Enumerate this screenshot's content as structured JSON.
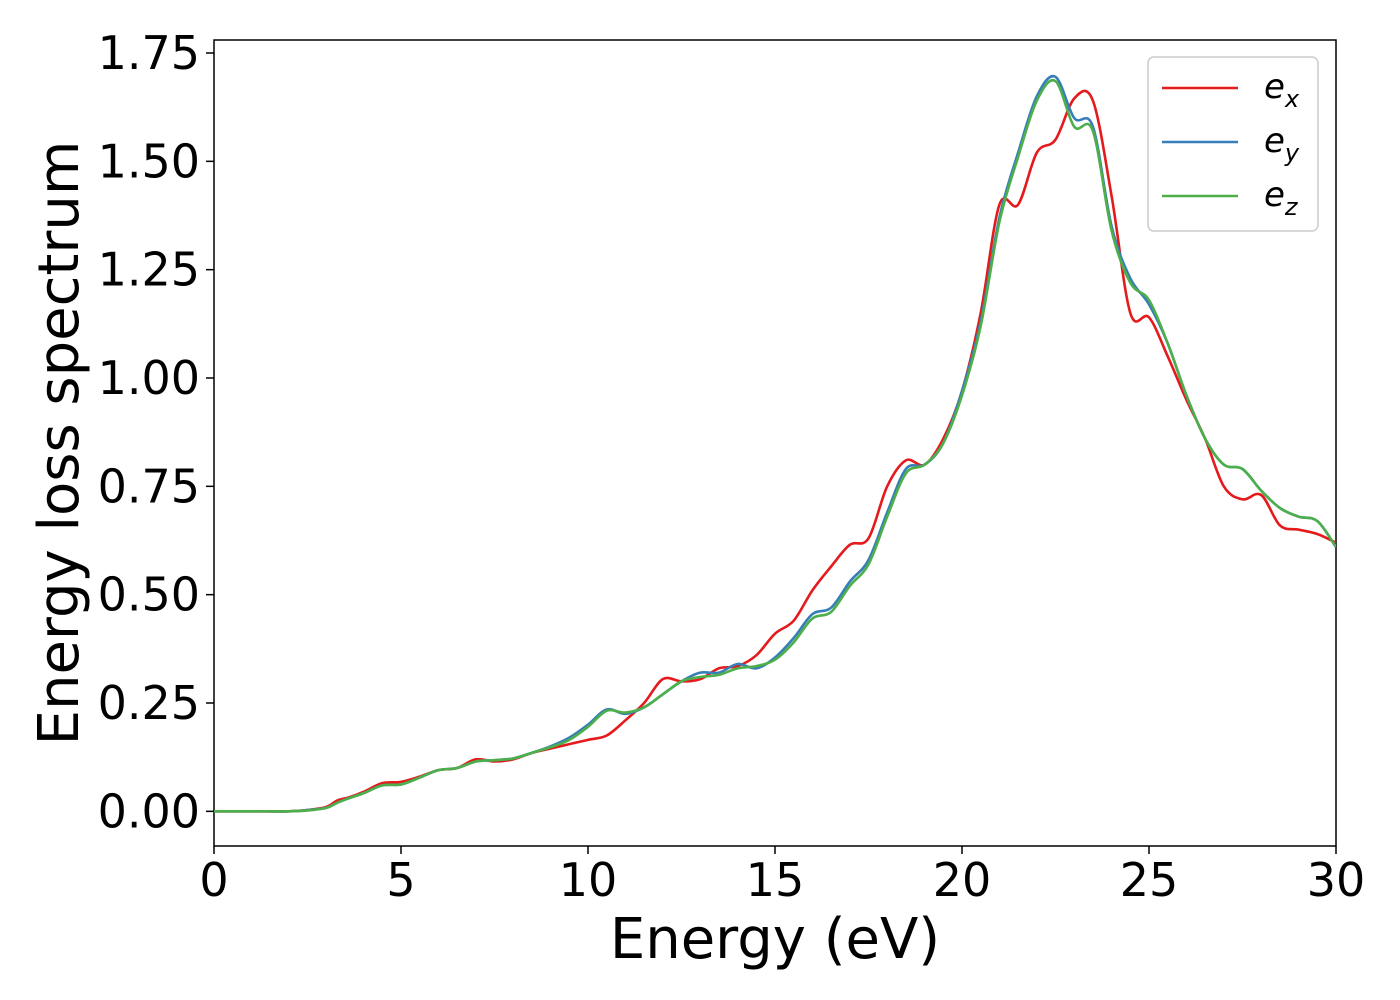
{
  "chart_data": {
    "type": "line",
    "title": "",
    "xlabel": "Energy (eV)",
    "ylabel": "Energy loss spectrum",
    "xlim": [
      0,
      30
    ],
    "ylim": [
      -0.08,
      1.78
    ],
    "xticks": [
      0,
      5,
      10,
      15,
      20,
      25,
      30
    ],
    "xtick_labels": [
      "0",
      "5",
      "10",
      "15",
      "20",
      "25",
      "30"
    ],
    "yticks": [
      0,
      0.25,
      0.5,
      0.75,
      1.0,
      1.25,
      1.5,
      1.75
    ],
    "ytick_labels": [
      "0.00",
      "0.25",
      "0.50",
      "0.75",
      "1.00",
      "1.25",
      "1.50",
      "1.75"
    ],
    "grid": false,
    "legend_position": "top-right",
    "x": [
      0,
      1,
      2,
      2.5,
      3,
      3.3,
      3.6,
      4,
      4.5,
      5,
      5.5,
      6,
      6.5,
      7,
      7.5,
      8,
      8.5,
      9,
      9.5,
      10,
      10.5,
      11,
      11.5,
      12,
      12.5,
      13,
      13.5,
      14,
      14.5,
      15,
      15.5,
      16,
      16.5,
      17,
      17.5,
      18,
      18.5,
      19,
      19.5,
      20,
      20.5,
      21,
      21.5,
      22,
      22.5,
      23,
      23.5,
      24,
      24.5,
      25,
      25.5,
      26,
      26.5,
      27,
      27.5,
      28,
      28.5,
      29,
      29.5,
      30
    ],
    "series": [
      {
        "name": "x",
        "color": "#e41a1c",
        "values": [
          0,
          0,
          0,
          0.003,
          0.01,
          0.025,
          0.032,
          0.045,
          0.065,
          0.068,
          0.08,
          0.095,
          0.1,
          0.12,
          0.115,
          0.12,
          0.135,
          0.145,
          0.155,
          0.165,
          0.175,
          0.21,
          0.25,
          0.305,
          0.3,
          0.305,
          0.33,
          0.335,
          0.36,
          0.41,
          0.44,
          0.51,
          0.565,
          0.615,
          0.63,
          0.75,
          0.81,
          0.8,
          0.86,
          0.97,
          1.15,
          1.4,
          1.4,
          1.52,
          1.55,
          1.645,
          1.64,
          1.42,
          1.15,
          1.14,
          1.05,
          0.95,
          0.86,
          0.75,
          0.72,
          0.73,
          0.66,
          0.65,
          0.64,
          0.62
        ]
      },
      {
        "name": "y",
        "color": "#377eb8",
        "values": [
          0,
          0,
          0,
          0.003,
          0.008,
          0.02,
          0.03,
          0.042,
          0.06,
          0.062,
          0.078,
          0.095,
          0.1,
          0.115,
          0.118,
          0.122,
          0.135,
          0.15,
          0.17,
          0.2,
          0.235,
          0.225,
          0.24,
          0.27,
          0.3,
          0.32,
          0.32,
          0.34,
          0.33,
          0.355,
          0.4,
          0.455,
          0.47,
          0.53,
          0.58,
          0.69,
          0.79,
          0.8,
          0.85,
          0.97,
          1.13,
          1.37,
          1.52,
          1.65,
          1.695,
          1.6,
          1.58,
          1.35,
          1.23,
          1.17,
          1.08,
          0.96,
          0.86,
          0.8,
          0.79,
          0.74,
          0.7,
          0.68,
          0.67,
          0.61
        ]
      },
      {
        "name": "z",
        "color": "#4daf4a",
        "values": [
          0,
          0,
          0,
          0.002,
          0.008,
          0.02,
          0.03,
          0.042,
          0.06,
          0.062,
          0.078,
          0.095,
          0.1,
          0.115,
          0.118,
          0.122,
          0.135,
          0.148,
          0.165,
          0.195,
          0.232,
          0.228,
          0.24,
          0.27,
          0.3,
          0.31,
          0.315,
          0.33,
          0.335,
          0.35,
          0.39,
          0.445,
          0.46,
          0.52,
          0.57,
          0.68,
          0.78,
          0.8,
          0.85,
          0.96,
          1.12,
          1.36,
          1.51,
          1.64,
          1.685,
          1.58,
          1.57,
          1.34,
          1.22,
          1.18,
          1.08,
          0.96,
          0.86,
          0.8,
          0.79,
          0.74,
          0.7,
          0.68,
          0.67,
          0.61
        ]
      }
    ]
  },
  "legend": {
    "items": [
      {
        "label": "e",
        "sub": "x",
        "color": "#e41a1c"
      },
      {
        "label": "e",
        "sub": "y",
        "color": "#377eb8"
      },
      {
        "label": "e",
        "sub": "z",
        "color": "#4daf4a"
      }
    ]
  }
}
